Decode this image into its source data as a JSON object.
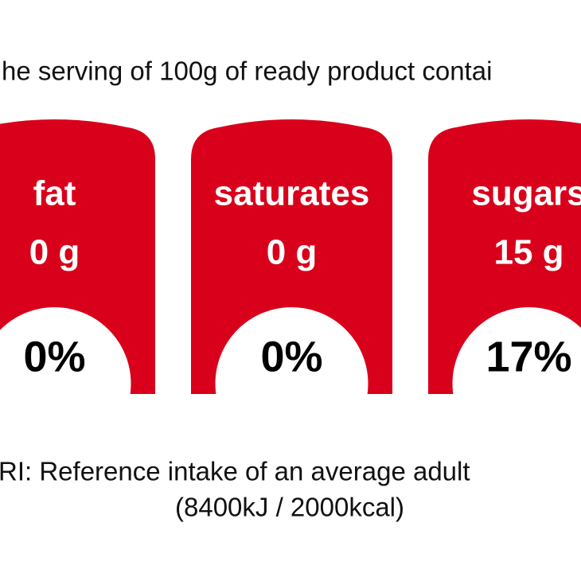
{
  "header": {
    "text": "he serving of 100g of ready product contai"
  },
  "badges": [
    {
      "label": "fat",
      "amount": "0 g",
      "percent": "0%"
    },
    {
      "label": "saturates",
      "amount": "0 g",
      "percent": "0%"
    },
    {
      "label": "sugars",
      "amount": "15 g",
      "percent": "17%"
    }
  ],
  "footer": {
    "line1": "RI: Reference intake of an average adult",
    "line2": "(8400kJ / 2000kcal)"
  }
}
